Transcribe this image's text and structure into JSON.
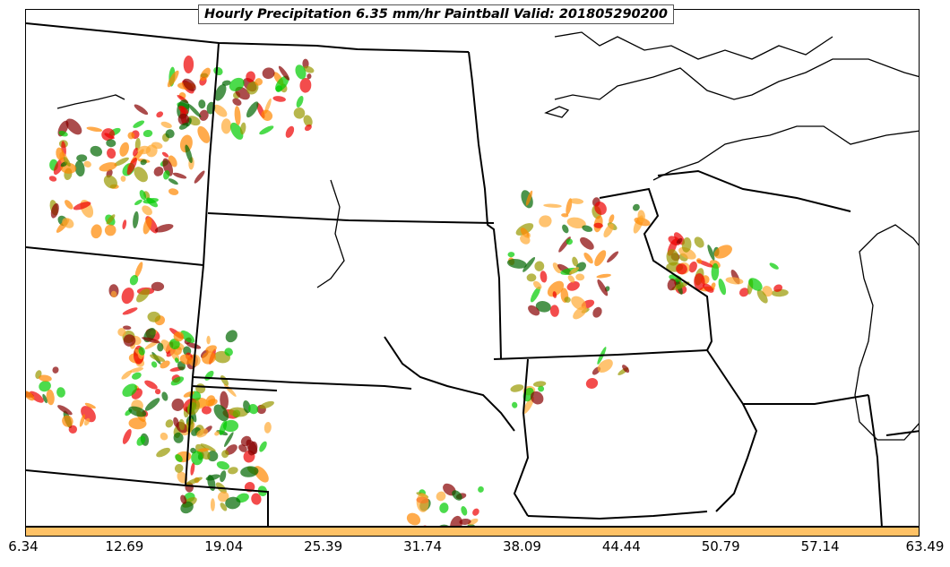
{
  "title": "Hourly Precipitation 6.35 mm/hr Paintball Valid: 201805290200",
  "colorbar": {
    "ticks": [
      "6.34",
      "12.69",
      "19.04",
      "25.39",
      "31.74",
      "38.09",
      "44.44",
      "50.79",
      "57.14",
      "63.49"
    ],
    "color": "#ffc266"
  },
  "paintball_colors": [
    "#00cc00",
    "#006600",
    "#999900",
    "#ff8800",
    "#ee0000",
    "#880000",
    "#ffaa33"
  ]
}
